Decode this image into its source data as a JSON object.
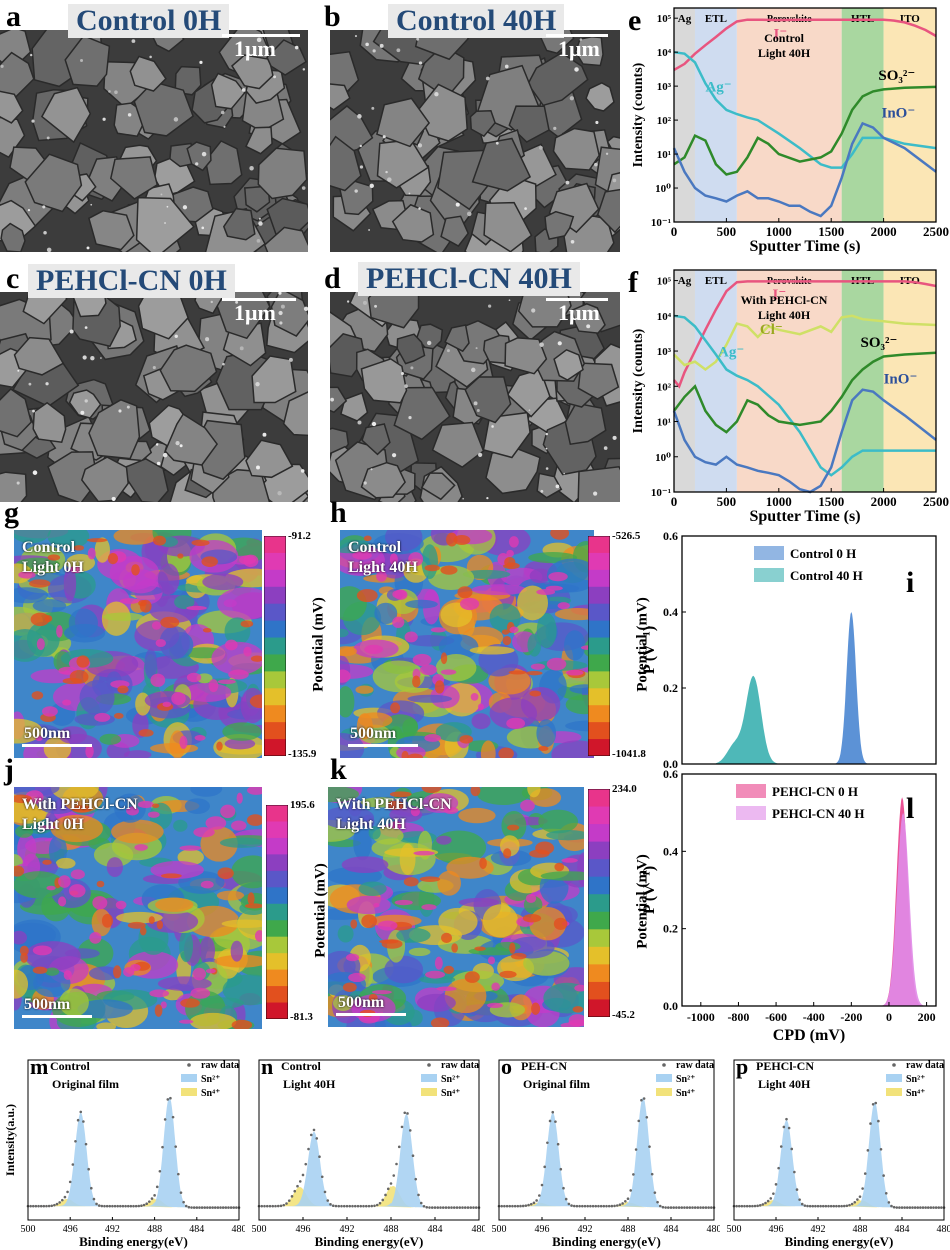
{
  "sem": [
    {
      "label": "a",
      "title": "Control 0H",
      "scale": "1μm",
      "seed": 11
    },
    {
      "label": "b",
      "title": "Control 40H",
      "scale": "1μm",
      "seed": 23
    },
    {
      "label": "c",
      "title": "PEHCl-CN 0H",
      "scale": "1μm",
      "seed": 37
    },
    {
      "label": "d",
      "title": "PEHCl-CN 40H",
      "scale": "1μm",
      "seed": 53
    }
  ],
  "tof": [
    {
      "label": "e",
      "annotation": "Control\nLight 40H",
      "layers": [
        {
          "name": "Ag",
          "from": 0,
          "to": 200,
          "color": "#d9d9d9"
        },
        {
          "name": "ETL",
          "from": 200,
          "to": 600,
          "color": "#cfdcf0"
        },
        {
          "name": "Perovskite",
          "from": 600,
          "to": 1600,
          "color": "#f8d9c8"
        },
        {
          "name": "HTL",
          "from": 1600,
          "to": 2000,
          "color": "#a9d7a0"
        },
        {
          "name": "ITO",
          "from": 2000,
          "to": 2500,
          "color": "#fbe6b5"
        }
      ],
      "series": [
        {
          "name": "I⁻",
          "color": "#e8557f",
          "x": [
            0,
            100,
            200,
            300,
            400,
            500,
            600,
            700,
            800,
            1000,
            1200,
            1400,
            1600,
            1800,
            2000,
            2100,
            2200,
            2300,
            2400,
            2500
          ],
          "y": [
            3000,
            4500,
            9000,
            16000,
            28000,
            50000,
            80000,
            90000,
            90000,
            88000,
            90000,
            90000,
            90000,
            90000,
            90000,
            85000,
            75000,
            60000,
            45000,
            30000
          ]
        },
        {
          "name": "Ag⁻",
          "color": "#3cbcc8",
          "x": [
            0,
            100,
            200,
            300,
            400,
            500,
            600,
            700,
            800,
            1000,
            1200,
            1400,
            1500,
            1600,
            1700,
            1800,
            2000,
            2200,
            2500
          ],
          "y": [
            10000,
            9000,
            5000,
            1200,
            400,
            200,
            150,
            120,
            100,
            40,
            15,
            5,
            4,
            4,
            10,
            30,
            30,
            20,
            15
          ]
        },
        {
          "name": "SO₃²⁻",
          "color": "#2f8a2a",
          "x": [
            0,
            100,
            200,
            300,
            400,
            500,
            600,
            700,
            800,
            900,
            1000,
            1200,
            1400,
            1500,
            1600,
            1700,
            1800,
            1900,
            2000,
            2200,
            2500
          ],
          "y": [
            5,
            8,
            35,
            25,
            5,
            2.5,
            3,
            8,
            30,
            20,
            10,
            6,
            8,
            12,
            40,
            200,
            500,
            700,
            800,
            900,
            950
          ]
        },
        {
          "name": "InO⁻",
          "color": "#4a78c0",
          "x": [
            0,
            100,
            200,
            300,
            400,
            500,
            600,
            700,
            800,
            900,
            1000,
            1100,
            1200,
            1300,
            1400,
            1500,
            1600,
            1700,
            1800,
            1900,
            2000,
            2200,
            2500
          ],
          "y": [
            15,
            3,
            1,
            0.6,
            0.5,
            0.4,
            0.6,
            0.8,
            0.5,
            0.5,
            0.4,
            0.3,
            0.3,
            0.2,
            0.15,
            0.3,
            2,
            20,
            80,
            60,
            30,
            15,
            3
          ]
        }
      ],
      "labels": [
        {
          "text": "I⁻",
          "x": 950,
          "y": 25000,
          "color": "#e8557f"
        },
        {
          "text": "Ag⁻",
          "x": 300,
          "y": 700,
          "color": "#3cbcc8"
        },
        {
          "text": "SO₃²⁻",
          "x": 1950,
          "y": 1500,
          "color": "#000000"
        },
        {
          "text": "InO⁻",
          "x": 1980,
          "y": 120,
          "color": "#2b4f9a"
        }
      ]
    },
    {
      "label": "f",
      "annotation": "With PEHCl-CN\nLight 40H",
      "layers": [
        {
          "name": "Ag",
          "from": 0,
          "to": 200,
          "color": "#d9d9d9"
        },
        {
          "name": "ETL",
          "from": 200,
          "to": 600,
          "color": "#cfdcf0"
        },
        {
          "name": "Perovskite",
          "from": 600,
          "to": 1600,
          "color": "#f8d9c8"
        },
        {
          "name": "HTL",
          "from": 1600,
          "to": 2000,
          "color": "#a9d7a0"
        },
        {
          "name": "ITO",
          "from": 2000,
          "to": 2500,
          "color": "#fbe6b5"
        }
      ],
      "series": [
        {
          "name": "I⁻",
          "color": "#e8557f",
          "x": [
            0,
            50,
            100,
            200,
            300,
            400,
            500,
            600,
            700,
            800,
            1000,
            1200,
            1400,
            1600,
            1800,
            2000,
            2200,
            2300,
            2400,
            2500
          ],
          "y": [
            150,
            100,
            250,
            1000,
            4000,
            15000,
            50000,
            90000,
            95000,
            95000,
            95000,
            95000,
            95000,
            95000,
            95000,
            95000,
            95000,
            90000,
            80000,
            70000
          ]
        },
        {
          "name": "Cl⁻",
          "color": "#cfe066",
          "x": [
            0,
            100,
            200,
            300,
            400,
            500,
            600,
            700,
            800,
            900,
            1000,
            1200,
            1400,
            1500,
            1600,
            1700,
            1800,
            2000,
            2200,
            2500
          ],
          "y": [
            800,
            400,
            500,
            300,
            500,
            1500,
            6000,
            5000,
            2500,
            5000,
            4000,
            3000,
            5000,
            3500,
            9000,
            10000,
            8000,
            7000,
            6000,
            5500
          ]
        },
        {
          "name": "Ag⁻",
          "color": "#3cbcc8",
          "x": [
            0,
            100,
            200,
            300,
            400,
            500,
            600,
            700,
            800,
            1000,
            1200,
            1400,
            1500,
            1600,
            1700,
            1800,
            2000,
            2200,
            2500
          ],
          "y": [
            10000,
            9000,
            5000,
            2000,
            800,
            300,
            200,
            150,
            100,
            30,
            5,
            0.5,
            0.3,
            0.5,
            1,
            1.5,
            1.5,
            1.5,
            1.5
          ]
        },
        {
          "name": "SO₃²⁻",
          "color": "#2f8a2a",
          "x": [
            0,
            100,
            200,
            300,
            400,
            500,
            600,
            700,
            800,
            900,
            1000,
            1200,
            1400,
            1500,
            1600,
            1700,
            1800,
            1900,
            2000,
            2200,
            2500
          ],
          "y": [
            20,
            50,
            100,
            20,
            8,
            5,
            10,
            40,
            30,
            15,
            10,
            8,
            10,
            20,
            50,
            150,
            300,
            500,
            700,
            800,
            900
          ]
        },
        {
          "name": "InO⁻",
          "color": "#4a78c0",
          "x": [
            0,
            100,
            200,
            300,
            400,
            500,
            600,
            700,
            800,
            900,
            1000,
            1100,
            1200,
            1300,
            1400,
            1500,
            1600,
            1700,
            1800,
            1900,
            2000,
            2200,
            2500
          ],
          "y": [
            20,
            3,
            1,
            0.7,
            0.6,
            1,
            0.6,
            0.5,
            0.4,
            0.35,
            0.3,
            0.2,
            0.12,
            0.1,
            0.15,
            0.5,
            5,
            40,
            80,
            70,
            40,
            15,
            3
          ]
        }
      ],
      "labels": [
        {
          "text": "I⁻",
          "x": 940,
          "y": 30000,
          "color": "#e8557f"
        },
        {
          "text": "Cl⁻",
          "x": 820,
          "y": 3000,
          "color": "#9aa821"
        },
        {
          "text": "Ag⁻",
          "x": 420,
          "y": 700,
          "color": "#3cbcc8"
        },
        {
          "text": "SO₃²⁻",
          "x": 1780,
          "y": 1300,
          "color": "#000000"
        },
        {
          "text": "InO⁻",
          "x": 2000,
          "y": 120,
          "color": "#2b4f9a"
        }
      ]
    }
  ],
  "tof_axes": {
    "xlabel": "Sputter Time (s)",
    "ylabel": "Intensity (counts)",
    "xticks": [
      0,
      500,
      1000,
      1500,
      2000,
      2500
    ],
    "yticks": [
      "10⁻¹",
      "10⁰",
      "10¹",
      "10²",
      "10³",
      "10⁴",
      "10⁵"
    ]
  },
  "kpfm": [
    {
      "label": "g",
      "text": "Control\nLight 0H",
      "scale": "500nm",
      "cb_max": "-91.2",
      "cb_min": "-135.9",
      "seed": 5
    },
    {
      "label": "h",
      "text": "Control\nLight 40H",
      "scale": "500nm",
      "cb_max": "-526.5",
      "cb_min": "-1041.8",
      "seed": 9
    },
    {
      "label": "j",
      "text": "With PEHCl-CN\nLight 0H",
      "scale": "500nm",
      "cb_max": "195.6",
      "cb_min": "-81.3",
      "seed": 14
    },
    {
      "label": "k",
      "text": "With PEHCl-CN\nLight 40H",
      "scale": "500nm",
      "cb_max": "234.0",
      "cb_min": "-45.2",
      "seed": 21
    }
  ],
  "cb_label": "Potential (mV)",
  "cpd_axes": {
    "xlabel": "CPD (mV)",
    "ylabel": "P (V⁻¹)",
    "xticks": [
      -1000,
      -800,
      -600,
      -400,
      -200,
      0,
      200
    ],
    "yticks": [
      "0.0",
      "0.2",
      "0.4",
      "0.6"
    ]
  },
  "chart_data": [
    {
      "type": "area",
      "panel": "i",
      "title": "",
      "xlabel": "",
      "ylabel": "P (V⁻¹)",
      "ylim": [
        0,
        0.6
      ],
      "xlim": [
        -1100,
        250
      ],
      "series": [
        {
          "name": "Control 0 H",
          "color": "#4a86d1",
          "center": -200,
          "peak": 0.4,
          "width": 25
        },
        {
          "name": "Control 40 H",
          "color": "#3bb0b0",
          "center": -720,
          "peak": 0.23,
          "width": 40
        }
      ]
    },
    {
      "type": "area",
      "panel": "l",
      "title": "",
      "xlabel": "CPD (mV)",
      "ylabel": "P (V⁻¹)",
      "ylim": [
        0,
        0.6
      ],
      "xlim": [
        -1100,
        250
      ],
      "series": [
        {
          "name": "PEHCl-CN 0 H",
          "color": "#e8408a",
          "center": 70,
          "peak": 0.54,
          "width": 30
        },
        {
          "name": "PEHCl-CN 40 H",
          "color": "#e08be8",
          "center": 75,
          "peak": 0.5,
          "width": 32
        }
      ]
    },
    {
      "type": "line",
      "panel": "m",
      "annotation": "Control\nOriginal film",
      "xlabel": "Binding energy(eV)",
      "xlim": [
        500,
        480
      ],
      "xticks": [
        500,
        496,
        492,
        488,
        484,
        480
      ],
      "series": [
        {
          "name": "raw data"
        },
        {
          "name": "Sn²⁺",
          "peaks": [
            {
              "c": 495.0,
              "h": 0.78
            },
            {
              "c": 486.6,
              "h": 0.92
            }
          ]
        },
        {
          "name": "Sn⁴⁺",
          "peaks": [
            {
              "c": 496.3,
              "h": 0.06
            },
            {
              "c": 487.8,
              "h": 0.07
            }
          ]
        }
      ]
    },
    {
      "type": "line",
      "panel": "n",
      "annotation": "Control\nLight 40H",
      "xlabel": "Binding energy(eV)",
      "xlim": [
        500,
        480
      ],
      "xticks": [
        500,
        496,
        492,
        488,
        484,
        480
      ],
      "series": [
        {
          "name": "raw data"
        },
        {
          "name": "Sn²⁺",
          "peaks": [
            {
              "c": 495.0,
              "h": 0.62
            },
            {
              "c": 486.6,
              "h": 0.78
            }
          ]
        },
        {
          "name": "Sn⁴⁺",
          "peaks": [
            {
              "c": 496.3,
              "h": 0.16
            },
            {
              "c": 487.8,
              "h": 0.18
            }
          ]
        }
      ]
    },
    {
      "type": "line",
      "panel": "o",
      "annotation": "PEH-CN\nOriginal film",
      "xlabel": "Binding energy(eV)",
      "xlim": [
        500,
        480
      ],
      "xticks": [
        500,
        496,
        492,
        488,
        484,
        480
      ],
      "series": [
        {
          "name": "raw data"
        },
        {
          "name": "Sn²⁺",
          "peaks": [
            {
              "c": 495.0,
              "h": 0.78
            },
            {
              "c": 486.6,
              "h": 0.92
            }
          ]
        },
        {
          "name": "Sn⁴⁺",
          "peaks": [
            {
              "c": 496.3,
              "h": 0.03
            },
            {
              "c": 487.8,
              "h": 0.04
            }
          ]
        }
      ]
    },
    {
      "type": "line",
      "panel": "p",
      "annotation": "PEHCl-CN\nLight 40H",
      "xlabel": "Binding energy(eV)",
      "xlim": [
        500,
        480
      ],
      "xticks": [
        500,
        496,
        492,
        488,
        484,
        480
      ],
      "series": [
        {
          "name": "raw data"
        },
        {
          "name": "Sn²⁺",
          "peaks": [
            {
              "c": 495.0,
              "h": 0.72
            },
            {
              "c": 486.6,
              "h": 0.88
            }
          ]
        },
        {
          "name": "Sn⁴⁺",
          "peaks": [
            {
              "c": 496.3,
              "h": 0.05
            },
            {
              "c": 487.8,
              "h": 0.06
            }
          ]
        }
      ]
    }
  ],
  "xps_ylabel": "Intensity(a.u.)",
  "xps_legend": [
    "raw data",
    "Sn²⁺",
    "Sn⁴⁺"
  ],
  "colors": {
    "sn2": "#a9d2f2",
    "sn4": "#f2e27a",
    "raw": "#666666"
  }
}
